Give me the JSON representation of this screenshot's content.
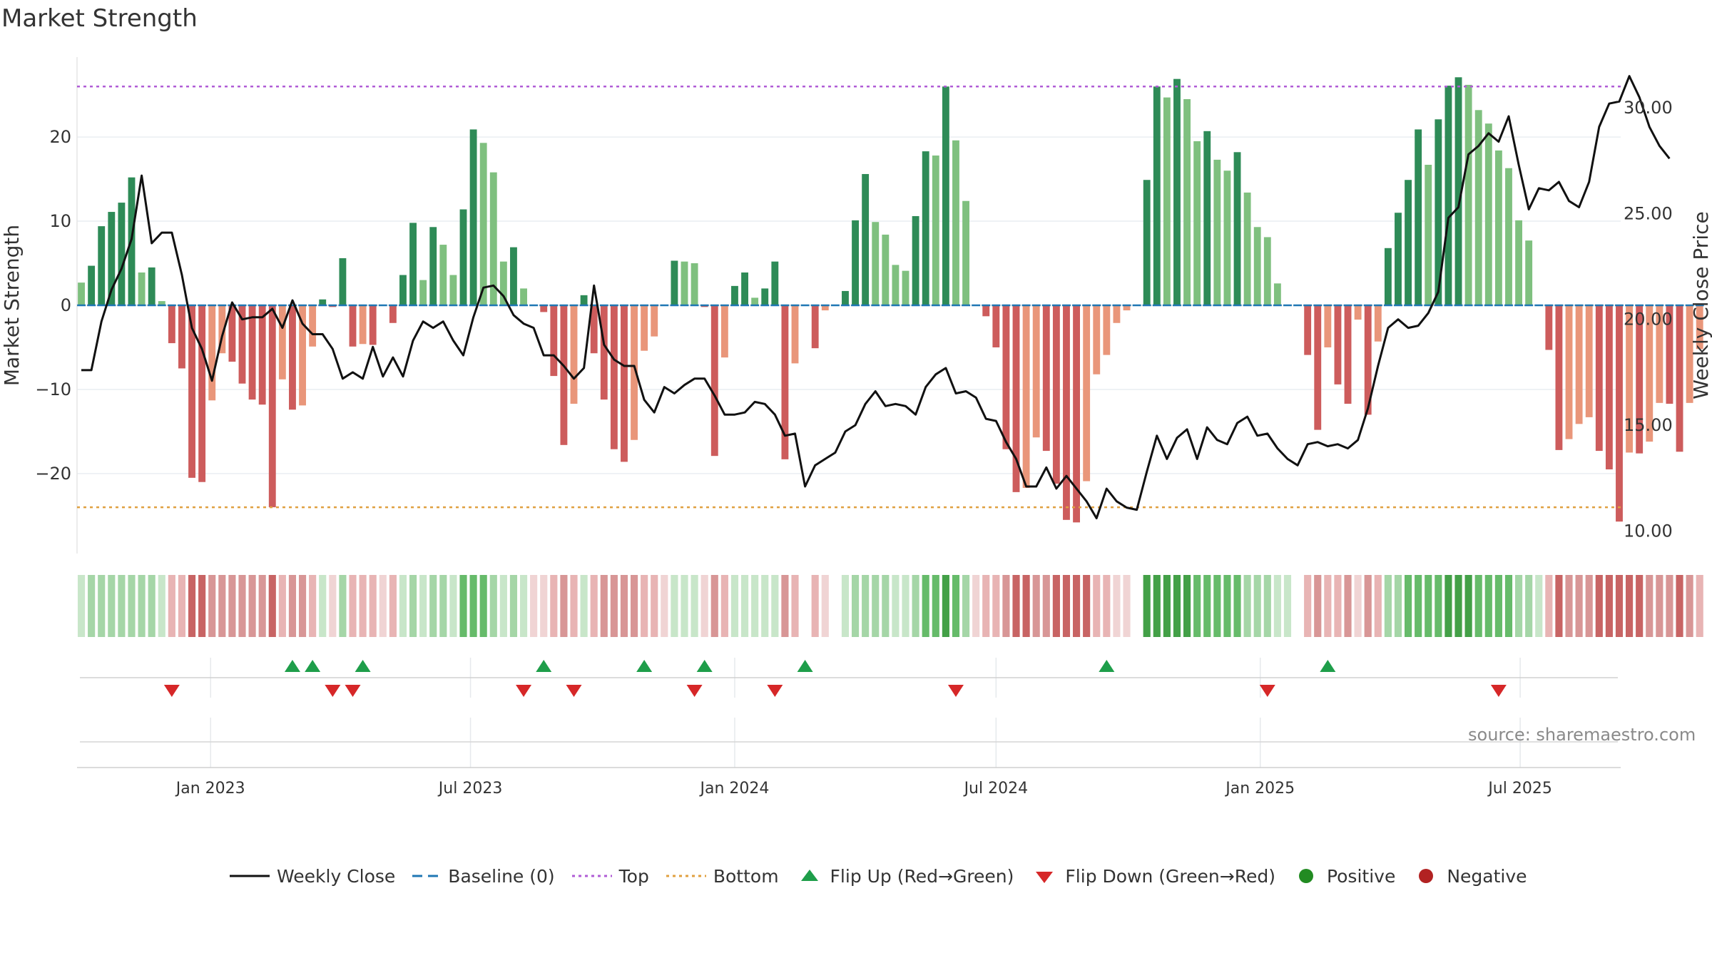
{
  "title": "Market Strength",
  "source_text": "source: sharemaestro.com",
  "colors": {
    "strong_green": "#2e8b57",
    "light_green": "#7fc07f",
    "strong_red": "#cd5c5c",
    "light_red": "#e9967a",
    "close_line": "#111111",
    "baseline": "#1f77b4",
    "top_line": "#b05cd6",
    "bottom_line": "#e0a040",
    "flip_up": "#1e9e4a",
    "flip_down": "#d62728",
    "positive": "#228b22",
    "negative": "#b22222"
  },
  "legend": [
    {
      "key": "close",
      "label": "Weekly Close",
      "icon": "line-icon"
    },
    {
      "key": "baseline",
      "label": "Baseline (0)",
      "icon": "dash-line-icon"
    },
    {
      "key": "top",
      "label": "Top",
      "icon": "dotted-line-icon"
    },
    {
      "key": "bottom",
      "label": "Bottom",
      "icon": "dotted-line-icon"
    },
    {
      "key": "flipup",
      "label": "Flip Up (Red→Green)",
      "icon": "triangle-up-icon"
    },
    {
      "key": "flipdown",
      "label": "Flip Down (Green→Red)",
      "icon": "triangle-down-icon"
    },
    {
      "key": "positive",
      "label": "Positive",
      "icon": "circle-icon"
    },
    {
      "key": "negative",
      "label": "Negative",
      "icon": "circle-icon"
    }
  ],
  "chart_data": {
    "type": "bar",
    "title": "Market Strength",
    "ylabel": "Market Strength",
    "y2label": "Weekly Close Price",
    "ylim": [
      -29.5,
      29.5
    ],
    "y2lim": [
      8.93,
      32.4
    ],
    "yticks": [
      {
        "v": 20,
        "label": "20"
      },
      {
        "v": 10,
        "label": "10"
      },
      {
        "v": 0,
        "label": "0"
      },
      {
        "v": -10,
        "label": "−10"
      },
      {
        "v": -20,
        "label": "−20"
      }
    ],
    "y2ticks": [
      {
        "v": 30,
        "label": "30.00"
      },
      {
        "v": 25,
        "label": "25.00"
      },
      {
        "v": 20,
        "label": "20.00"
      },
      {
        "v": 15,
        "label": "15.00"
      },
      {
        "v": 10,
        "label": "10.00"
      }
    ],
    "xstart": "2022-10-03",
    "week_days": 7,
    "xlim_days": [
      -3,
      1072
    ],
    "xticks": [
      {
        "day": 90,
        "label": "Jan 2023"
      },
      {
        "day": 271,
        "label": "Jul 2023"
      },
      {
        "day": 455,
        "label": "Jan 2024"
      },
      {
        "day": 637,
        "label": "Jul 2024"
      },
      {
        "day": 821,
        "label": "Jan 2025"
      },
      {
        "day": 1002,
        "label": "Jul 2025"
      }
    ],
    "top": 26,
    "bottom": -24,
    "strength": [
      2.7,
      4.7,
      9.4,
      11.1,
      12.2,
      15.2,
      3.9,
      4.5,
      0.5,
      -4.5,
      -7.5,
      -20.5,
      -21.0,
      -11.3,
      -5.7,
      -6.7,
      -9.3,
      -11.2,
      -11.8,
      -24.0,
      -8.8,
      -12.4,
      -11.9,
      -4.9,
      0.7,
      -0.2,
      5.6,
      -4.9,
      -4.6,
      -4.7,
      0.0,
      -2.1,
      3.6,
      9.8,
      3.0,
      9.3,
      7.2,
      3.6,
      11.4,
      20.9,
      19.3,
      15.8,
      5.2,
      6.9,
      2.0,
      0.0,
      -0.8,
      -8.4,
      -16.6,
      -11.7,
      1.2,
      -5.7,
      -11.2,
      -17.1,
      -18.6,
      -16.0,
      -5.4,
      -3.7,
      0.0,
      5.3,
      5.2,
      5.0,
      -0.2,
      -17.9,
      -6.2,
      2.3,
      3.9,
      0.9,
      2.0,
      5.2,
      -18.3,
      -6.9,
      0.0,
      -5.1,
      -0.6,
      0.0,
      1.7,
      10.1,
      15.6,
      9.9,
      8.4,
      4.8,
      4.1,
      10.6,
      18.3,
      17.8,
      26.0,
      19.6,
      12.4,
      0.0,
      -1.3,
      -5.0,
      -17.1,
      -22.2,
      -21.7,
      -15.7,
      -17.3,
      -21.2,
      -25.5,
      -25.8,
      -20.9,
      -8.2,
      -5.9,
      -2.1,
      -0.6,
      0.0,
      14.9,
      26.0,
      24.7,
      26.9,
      24.5,
      19.5,
      20.7,
      17.3,
      16.0,
      18.2,
      13.4,
      9.3,
      8.1,
      2.6,
      0.0,
      0.0,
      -5.9,
      -14.8,
      -5.0,
      -9.4,
      -11.7,
      -1.7,
      -13.0,
      -4.3,
      6.8,
      11.0,
      14.9,
      20.9,
      16.7,
      22.1,
      26.1,
      27.1,
      26.2,
      23.2,
      21.6,
      18.4,
      16.3,
      10.1,
      7.7,
      0.0,
      -5.3,
      -17.2,
      -15.9,
      -14.1,
      -13.3,
      -17.3,
      -19.5,
      -25.7,
      -17.5,
      -17.6,
      -16.2,
      -11.6,
      -11.7,
      -17.4,
      -11.6,
      -5.2
    ],
    "close": [
      17.6,
      17.6,
      19.9,
      21.4,
      22.4,
      23.8,
      26.8,
      23.6,
      24.1,
      24.1,
      22.1,
      19.6,
      18.6,
      17.1,
      19.2,
      20.8,
      20.0,
      20.1,
      20.1,
      20.5,
      19.6,
      20.9,
      19.8,
      19.3,
      19.3,
      18.6,
      17.2,
      17.5,
      17.2,
      18.7,
      17.3,
      18.2,
      17.3,
      19.0,
      19.9,
      19.6,
      19.9,
      19.0,
      18.3,
      20.1,
      21.5,
      21.6,
      21.1,
      20.2,
      19.8,
      19.6,
      18.3,
      18.3,
      17.8,
      17.2,
      17.7,
      21.6,
      18.8,
      18.1,
      17.8,
      17.8,
      16.2,
      15.6,
      16.8,
      16.5,
      16.9,
      17.2,
      17.2,
      16.4,
      15.5,
      15.5,
      15.6,
      16.1,
      16.0,
      15.5,
      14.5,
      14.6,
      12.1,
      13.1,
      13.4,
      13.7,
      14.7,
      15.0,
      16.0,
      16.6,
      15.9,
      16.0,
      15.9,
      15.5,
      16.8,
      17.4,
      17.7,
      16.5,
      16.6,
      16.3,
      15.3,
      15.2,
      14.2,
      13.4,
      12.1,
      12.1,
      13.0,
      12.0,
      12.6,
      12.0,
      11.4,
      10.6,
      12.0,
      11.4,
      11.1,
      11.0,
      12.8,
      14.5,
      13.4,
      14.4,
      14.8,
      13.4,
      14.9,
      14.3,
      14.1,
      15.1,
      15.4,
      14.5,
      14.6,
      13.9,
      13.4,
      13.1,
      14.1,
      14.2,
      14.0,
      14.1,
      13.9,
      14.3,
      15.8,
      17.8,
      19.6,
      20.0,
      19.6,
      19.7,
      20.3,
      21.3,
      24.8,
      25.3,
      27.8,
      28.2,
      28.8,
      28.4,
      29.6,
      27.3,
      25.2,
      26.2,
      26.1,
      26.5,
      25.6,
      25.3,
      26.5,
      29.1,
      30.2,
      30.3,
      31.5,
      30.5,
      29.1,
      28.2,
      27.6
    ],
    "flip_up_days": [
      147,
      161,
      196,
      322,
      392,
      434,
      504,
      714,
      868
    ],
    "flip_down_days": [
      63,
      175,
      189,
      308,
      343,
      427,
      483,
      609,
      826,
      987
    ],
    "sentiment_colors": "#c8e6c9,#a5d6a7,#a5d6a7,#a5d6a7,#a5d6a7,#a5d6a7,#a5d6a7,#a5d6a7,#c8e6c9,#e8b4b4,#e8b4b4,#c86464,#c86464,#d89696,#d89696,#d89696,#d89696,#d89696,#d89696,#c86464,#e8b4b4,#d89696,#d89696,#e8b4b4,#c8e6c9,#f0d4d4,#a5d6a7,#e8b4b4,#e8b4b4,#e8b4b4,#f0d4d4,#e8b4b4,#c8e6c9,#a5d6a7,#c8e6c9,#a5d6a7,#a5d6a7,#c8e6c9,#66bb6a,#66bb6a,#66bb6a,#a5d6a7,#c8e6c9,#a5d6a7,#c8e6c9,#f0d4d4,#f0d4d4,#e8b4b4,#d89696,#e8b4b4,#c8e6c9,#e8b4b4,#d89696,#d89696,#d89696,#d89696,#e8b4b4,#e8b4b4,#f0d4d4,#c8e6c9,#c8e6c9,#c8e6c9,#f0d4d4,#d89696,#e8b4b4,#c8e6c9,#c8e6c9,#c8e6c9,#c8e6c9,#c8e6c9,#d89696,#e8b4b4,#ffffff,#e8b4b4,#f0d4d4,#ffffff,#c8e6c9,#a5d6a7,#a5d6a7,#a5d6a7,#a5d6a7,#c8e6c9,#c8e6c9,#a5d6a7,#66bb6a,#66bb6a,#43a047,#66bb6a,#a5d6a7,#f0d4d4,#e8b4b4,#e8b4b4,#d89696,#c86464,#c86464,#d89696,#d89696,#c86464,#c86464,#c86464,#c86464,#e8b4b4,#e8b4b4,#f0d4d4,#f0d4d4,#ffffff,#43a047,#43a047,#43a047,#43a047,#43a047,#66bb6a,#66bb6a,#66bb6a,#66bb6a,#66bb6a,#a5d6a7,#a5d6a7,#a5d6a7,#c8e6c9,#c8e6c9,#ffffff,#e8b4b4,#d89696,#e8b4b4,#e8b4b4,#d89696,#f0d4d4,#d89696,#e8b4b4,#a5d6a7,#a5d6a7,#66bb6a,#66bb6a,#66bb6a,#66bb6a,#43a047,#43a047,#43a047,#66bb6a,#66bb6a,#66bb6a,#66bb6a,#a5d6a7,#a5d6a7,#c8e6c9,#e8b4b4,#c86464,#d89696,#d89696,#d89696,#c86464,#c86464,#c86464,#c86464,#c86464,#d89696,#d89696,#d89696,#c86464,#d89696,#e8b4b4"
  }
}
